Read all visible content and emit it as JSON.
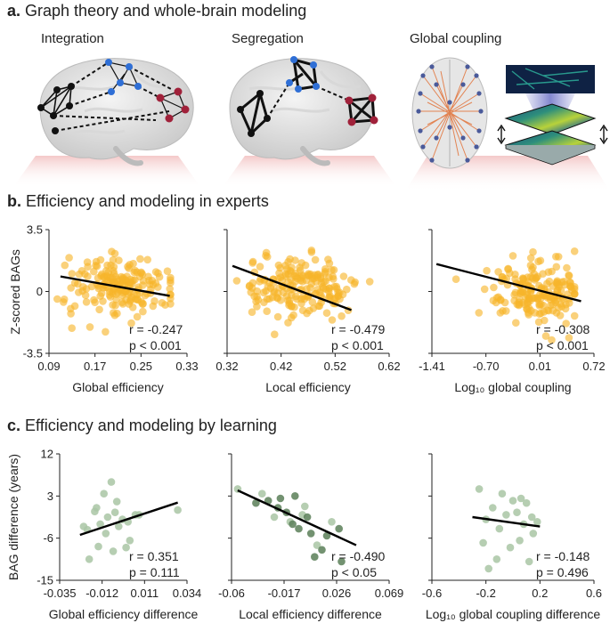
{
  "figure": {
    "a": {
      "letter": "a.",
      "title": "Graph theory and whole-brain modeling",
      "panels": [
        {
          "name": "integration",
          "label": "Integration"
        },
        {
          "name": "segregation",
          "label": "Segregation"
        },
        {
          "name": "global-coupling",
          "label": "Global coupling"
        }
      ]
    },
    "b": {
      "letter": "b.",
      "title": "Efficiency and modeling in experts",
      "ylabel": "Z-scored BAGs",
      "yticks": [
        "3.5",
        "0",
        "-3.5"
      ],
      "colors": {
        "point": "#f7b52a",
        "line": "#000000"
      }
    },
    "c": {
      "letter": "c.",
      "title": "Efficiency and modeling by learning",
      "ylabel": "BAG difference (years)",
      "yticks": [
        "12",
        "3",
        "-6",
        "-15"
      ],
      "colors": {
        "point_light": "#a9c5a4",
        "point_dark": "#5a7f58",
        "line": "#000000"
      }
    }
  },
  "chart_data": [
    {
      "type": "scatter",
      "id": "b1",
      "xlabel": "Global efficiency",
      "ylabel": "Z-scored BAGs",
      "xlim": [
        0.09,
        0.33
      ],
      "ylim": [
        -3.5,
        3.5
      ],
      "xticks": [
        "0.09",
        "0.17",
        "0.25",
        "0.33"
      ],
      "fit": {
        "x": [
          0.11,
          0.3
        ],
        "y": [
          0.85,
          -0.25
        ]
      },
      "r_text": "r = -0.247",
      "p_text": "p < 0.001",
      "points": {
        "n": 190,
        "xcenter": 0.215,
        "xspread": 0.045,
        "ycenter": 0.35,
        "yspread": 0.85
      }
    },
    {
      "type": "scatter",
      "id": "b2",
      "xlabel": "Local efficiency",
      "ylabel": "Z-scored BAGs",
      "xlim": [
        0.32,
        0.62
      ],
      "ylim": [
        -3.5,
        3.5
      ],
      "xticks": [
        "0.32",
        "0.42",
        "0.52",
        "0.62"
      ],
      "fit": {
        "x": [
          0.33,
          0.55
        ],
        "y": [
          1.45,
          -1.05
        ]
      },
      "r_text": "r = -0.479",
      "p_text": "p < 0.001",
      "points": {
        "n": 190,
        "xcenter": 0.45,
        "xspread": 0.05,
        "ycenter": 0.2,
        "yspread": 0.85
      }
    },
    {
      "type": "scatter",
      "id": "b3",
      "xlabel": "Log₁₀ global coupling",
      "ylabel": "Z-scored BAGs",
      "xlim": [
        -1.41,
        0.72
      ],
      "ylim": [
        -3.5,
        3.5
      ],
      "xticks": [
        "-1.41",
        "-0.70",
        "0.01",
        "0.72"
      ],
      "fit": {
        "x": [
          -1.35,
          0.55
        ],
        "y": [
          1.55,
          -0.55
        ]
      },
      "r_text": "r = -0.308",
      "p_text": "p < 0.001",
      "points": {
        "n": 190,
        "xcenter": -0.05,
        "xspread": 0.3,
        "ycenter": 0.1,
        "yspread": 0.85
      }
    },
    {
      "type": "scatter",
      "id": "c1",
      "xlabel": "Global efficiency difference",
      "ylabel": "BAG difference (years)",
      "xlim": [
        -0.035,
        0.034
      ],
      "ylim": [
        -15,
        12
      ],
      "xticks": [
        "-0.035",
        "-0.012",
        "0.011",
        "0.034"
      ],
      "fit": {
        "x": [
          -0.024,
          0.029
        ],
        "y": [
          -5.3,
          1.6
        ]
      },
      "r_text": "r = 0.351",
      "p_text": "p = 0.111",
      "points": {
        "x": [
          -0.022,
          -0.019,
          -0.016,
          -0.013,
          -0.011,
          -0.009,
          -0.007,
          -0.005,
          -0.003,
          -0.001,
          0.001,
          0.003,
          0.006,
          0.008,
          -0.02,
          -0.015,
          -0.01,
          -0.004,
          0.002,
          -0.014,
          -0.006,
          0.029
        ],
        "y": [
          -3.5,
          -10.5,
          -0.3,
          -3.0,
          3.5,
          -1.5,
          6.0,
          -0.5,
          -3.5,
          -2.0,
          -8.0,
          -6.5,
          -1.0,
          -1.0,
          -4.2,
          0.5,
          -5.0,
          1.8,
          -2.5,
          -7.8,
          -8.8,
          0.0
        ]
      }
    },
    {
      "type": "scatter",
      "id": "c2",
      "xlabel": "Local efficiency difference",
      "ylabel": "BAG difference (years)",
      "xlim": [
        -0.06,
        0.069
      ],
      "ylim": [
        -15,
        12
      ],
      "xticks": [
        "-0.06",
        "-0.017",
        "0.026",
        "0.069"
      ],
      "fit": {
        "x": [
          -0.055,
          0.042
        ],
        "y": [
          4.2,
          -7.5
        ]
      },
      "r_text": "r = -0.490",
      "p_text": "p < 0.05",
      "points": {
        "x": [
          -0.055,
          -0.04,
          -0.03,
          -0.025,
          -0.02,
          -0.015,
          -0.012,
          -0.008,
          -0.005,
          -0.002,
          0.002,
          0.005,
          0.01,
          0.014,
          0.018,
          0.022,
          0.028,
          0.03,
          -0.035,
          -0.022,
          -0.01,
          0.0,
          0.008
        ],
        "y": [
          4.5,
          1.5,
          2.0,
          -1.5,
          2.5,
          -0.5,
          -2.5,
          3.0,
          -4.0,
          -1.0,
          -1.5,
          -5.0,
          -7.5,
          -8.5,
          -5.5,
          -2.5,
          -4.0,
          -11.0,
          3.5,
          0.5,
          -3.0,
          0.8,
          -10.0
        ]
      }
    },
    {
      "type": "scatter",
      "id": "c3",
      "xlabel": "Log₁₀ global coupling difference",
      "ylabel": "BAG difference (years)",
      "xlim": [
        -0.6,
        0.6
      ],
      "ylim": [
        -15,
        12
      ],
      "xticks": [
        "-0.6",
        "-0.2",
        "0.2",
        "0.6"
      ],
      "fit": {
        "x": [
          -0.3,
          0.2
        ],
        "y": [
          -1.5,
          -3.5
        ]
      },
      "r_text": "r = -0.148",
      "p_text": "p = 0.496",
      "points": {
        "x": [
          -0.25,
          -0.2,
          -0.15,
          -0.1,
          -0.05,
          0.0,
          0.05,
          0.1,
          0.15,
          0.18,
          -0.22,
          -0.12,
          -0.02,
          0.08,
          0.12,
          -0.08,
          0.03,
          -0.18,
          0.14,
          0.06
        ],
        "y": [
          4.5,
          -2.0,
          0.5,
          -4.0,
          -1.0,
          2.0,
          -6.5,
          1.5,
          -5.0,
          -2.5,
          -7.0,
          -10.5,
          -8.0,
          -3.0,
          -11.0,
          3.5,
          -0.5,
          -12.5,
          -1.5,
          2.5
        ]
      }
    }
  ]
}
